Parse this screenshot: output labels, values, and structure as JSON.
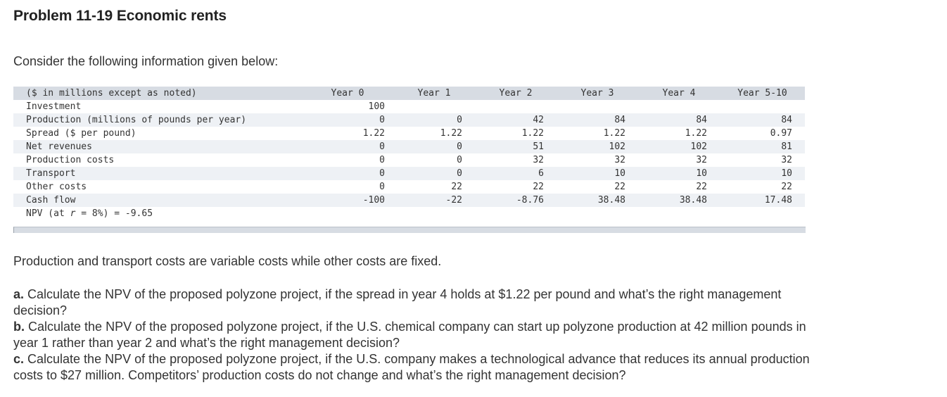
{
  "title": "Problem 11-19 Economic rents",
  "intro": "Consider the following information given below:",
  "table": {
    "header": [
      "($ in millions except as noted)",
      "Year 0",
      "Year 1",
      "Year 2",
      "Year 3",
      "Year 4",
      "Year 5-10"
    ],
    "rows": [
      {
        "label": "Investment",
        "values": [
          "100",
          "",
          "",
          "",
          "",
          ""
        ]
      },
      {
        "label": "Production (millions of pounds per year)",
        "values": [
          "0",
          "0",
          "42",
          "84",
          "84",
          "84"
        ]
      },
      {
        "label": "Spread ($ per pound)",
        "values": [
          "1.22",
          "1.22",
          "1.22",
          "1.22",
          "1.22",
          "0.97"
        ]
      },
      {
        "label": "Net revenues",
        "values": [
          "0",
          "0",
          "51",
          "102",
          "102",
          "81"
        ]
      },
      {
        "label": "Production costs",
        "values": [
          "0",
          "0",
          "32",
          "32",
          "32",
          "32"
        ]
      },
      {
        "label": "Transport",
        "values": [
          "0",
          "0",
          "6",
          "10",
          "10",
          "10"
        ]
      },
      {
        "label": "Other costs",
        "values": [
          "0",
          "22",
          "22",
          "22",
          "22",
          "22"
        ]
      },
      {
        "label": "Cash flow",
        "values": [
          "-100",
          "-22",
          "-8.76",
          "38.48",
          "38.48",
          "17.48"
        ]
      }
    ],
    "npv": {
      "prefix": "NPV (at ",
      "var": "r",
      "suffix": " = 8%) = -9.65"
    }
  },
  "note": "Production and transport costs are variable costs while other costs are fixed.",
  "questions": [
    {
      "letter": "a.",
      "text": " Calculate the NPV of the proposed polyzone project, if the spread in year 4 holds at $1.22 per pound and what’s the right management decision?"
    },
    {
      "letter": "b.",
      "text": " Calculate the NPV of the proposed polyzone project, if the U.S. chemical company can start up polyzone production at 42 million pounds in year 1 rather than year 2 and what’s the right management decision?"
    },
    {
      "letter": "c.",
      "text": " Calculate the NPV of the proposed polyzone project, if the U.S. company makes a technological advance that reduces its annual production costs to $27 million. Competitors’ production costs do not change and what’s the right management decision?"
    }
  ]
}
